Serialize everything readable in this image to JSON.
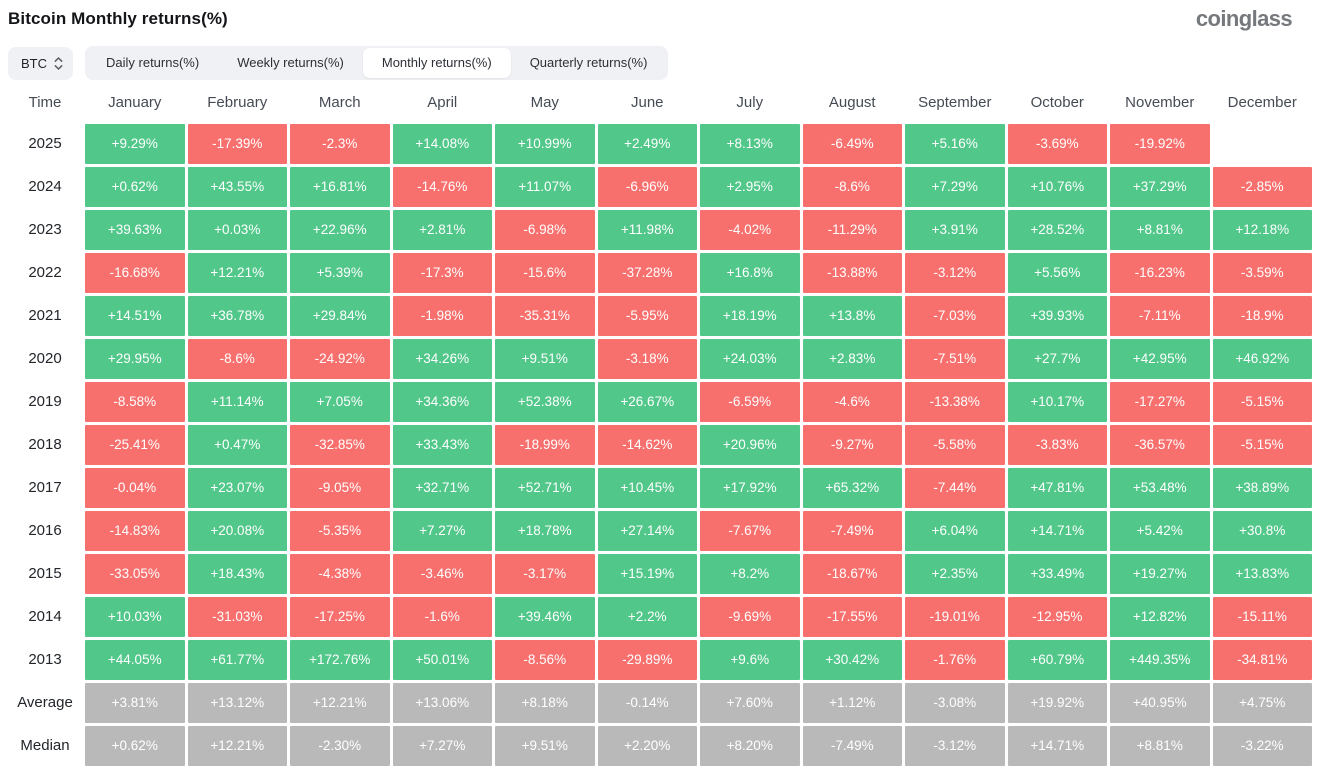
{
  "header": {
    "title": "Bitcoin Monthly returns(%)",
    "logo": "coinglass"
  },
  "controls": {
    "symbol_select": {
      "value": "BTC",
      "icon": "updown-chevron-icon"
    },
    "tabs": [
      {
        "label": "Daily returns(%)",
        "active": false
      },
      {
        "label": "Weekly returns(%)",
        "active": false
      },
      {
        "label": "Monthly returns(%)",
        "active": true
      },
      {
        "label": "Quarterly returns(%)",
        "active": false
      }
    ]
  },
  "colors": {
    "positive": "#51c78a",
    "negative": "#f7706e",
    "summary": "#b9b9b9"
  },
  "chart_data": {
    "type": "table",
    "title": "Bitcoin Monthly returns(%)",
    "time_header": "Time",
    "months": [
      "January",
      "February",
      "March",
      "April",
      "May",
      "June",
      "July",
      "August",
      "September",
      "October",
      "November",
      "December"
    ],
    "rows": [
      {
        "label": "2025",
        "type": "year",
        "values": [
          "+9.29%",
          "-17.39%",
          "-2.3%",
          "+14.08%",
          "+10.99%",
          "+2.49%",
          "+8.13%",
          "-6.49%",
          "+5.16%",
          "-3.69%",
          "-19.92%",
          ""
        ]
      },
      {
        "label": "2024",
        "type": "year",
        "values": [
          "+0.62%",
          "+43.55%",
          "+16.81%",
          "-14.76%",
          "+11.07%",
          "-6.96%",
          "+2.95%",
          "-8.6%",
          "+7.29%",
          "+10.76%",
          "+37.29%",
          "-2.85%"
        ]
      },
      {
        "label": "2023",
        "type": "year",
        "values": [
          "+39.63%",
          "+0.03%",
          "+22.96%",
          "+2.81%",
          "-6.98%",
          "+11.98%",
          "-4.02%",
          "-11.29%",
          "+3.91%",
          "+28.52%",
          "+8.81%",
          "+12.18%"
        ]
      },
      {
        "label": "2022",
        "type": "year",
        "values": [
          "-16.68%",
          "+12.21%",
          "+5.39%",
          "-17.3%",
          "-15.6%",
          "-37.28%",
          "+16.8%",
          "-13.88%",
          "-3.12%",
          "+5.56%",
          "-16.23%",
          "-3.59%"
        ]
      },
      {
        "label": "2021",
        "type": "year",
        "values": [
          "+14.51%",
          "+36.78%",
          "+29.84%",
          "-1.98%",
          "-35.31%",
          "-5.95%",
          "+18.19%",
          "+13.8%",
          "-7.03%",
          "+39.93%",
          "-7.11%",
          "-18.9%"
        ]
      },
      {
        "label": "2020",
        "type": "year",
        "values": [
          "+29.95%",
          "-8.6%",
          "-24.92%",
          "+34.26%",
          "+9.51%",
          "-3.18%",
          "+24.03%",
          "+2.83%",
          "-7.51%",
          "+27.7%",
          "+42.95%",
          "+46.92%"
        ]
      },
      {
        "label": "2019",
        "type": "year",
        "values": [
          "-8.58%",
          "+11.14%",
          "+7.05%",
          "+34.36%",
          "+52.38%",
          "+26.67%",
          "-6.59%",
          "-4.6%",
          "-13.38%",
          "+10.17%",
          "-17.27%",
          "-5.15%"
        ]
      },
      {
        "label": "2018",
        "type": "year",
        "values": [
          "-25.41%",
          "+0.47%",
          "-32.85%",
          "+33.43%",
          "-18.99%",
          "-14.62%",
          "+20.96%",
          "-9.27%",
          "-5.58%",
          "-3.83%",
          "-36.57%",
          "-5.15%"
        ]
      },
      {
        "label": "2017",
        "type": "year",
        "values": [
          "-0.04%",
          "+23.07%",
          "-9.05%",
          "+32.71%",
          "+52.71%",
          "+10.45%",
          "+17.92%",
          "+65.32%",
          "-7.44%",
          "+47.81%",
          "+53.48%",
          "+38.89%"
        ]
      },
      {
        "label": "2016",
        "type": "year",
        "values": [
          "-14.83%",
          "+20.08%",
          "-5.35%",
          "+7.27%",
          "+18.78%",
          "+27.14%",
          "-7.67%",
          "-7.49%",
          "+6.04%",
          "+14.71%",
          "+5.42%",
          "+30.8%"
        ]
      },
      {
        "label": "2015",
        "type": "year",
        "values": [
          "-33.05%",
          "+18.43%",
          "-4.38%",
          "-3.46%",
          "-3.17%",
          "+15.19%",
          "+8.2%",
          "-18.67%",
          "+2.35%",
          "+33.49%",
          "+19.27%",
          "+13.83%"
        ]
      },
      {
        "label": "2014",
        "type": "year",
        "values": [
          "+10.03%",
          "-31.03%",
          "-17.25%",
          "-1.6%",
          "+39.46%",
          "+2.2%",
          "-9.69%",
          "-17.55%",
          "-19.01%",
          "-12.95%",
          "+12.82%",
          "-15.11%"
        ]
      },
      {
        "label": "2013",
        "type": "year",
        "values": [
          "+44.05%",
          "+61.77%",
          "+172.76%",
          "+50.01%",
          "-8.56%",
          "-29.89%",
          "+9.6%",
          "+30.42%",
          "-1.76%",
          "+60.79%",
          "+449.35%",
          "-34.81%"
        ]
      },
      {
        "label": "Average",
        "type": "summary",
        "values": [
          "+3.81%",
          "+13.12%",
          "+12.21%",
          "+13.06%",
          "+8.18%",
          "-0.14%",
          "+7.60%",
          "+1.12%",
          "-3.08%",
          "+19.92%",
          "+40.95%",
          "+4.75%"
        ]
      },
      {
        "label": "Median",
        "type": "summary",
        "values": [
          "+0.62%",
          "+12.21%",
          "-2.30%",
          "+7.27%",
          "+9.51%",
          "+2.20%",
          "+8.20%",
          "-7.49%",
          "-3.12%",
          "+14.71%",
          "+8.81%",
          "-3.22%"
        ]
      }
    ]
  }
}
